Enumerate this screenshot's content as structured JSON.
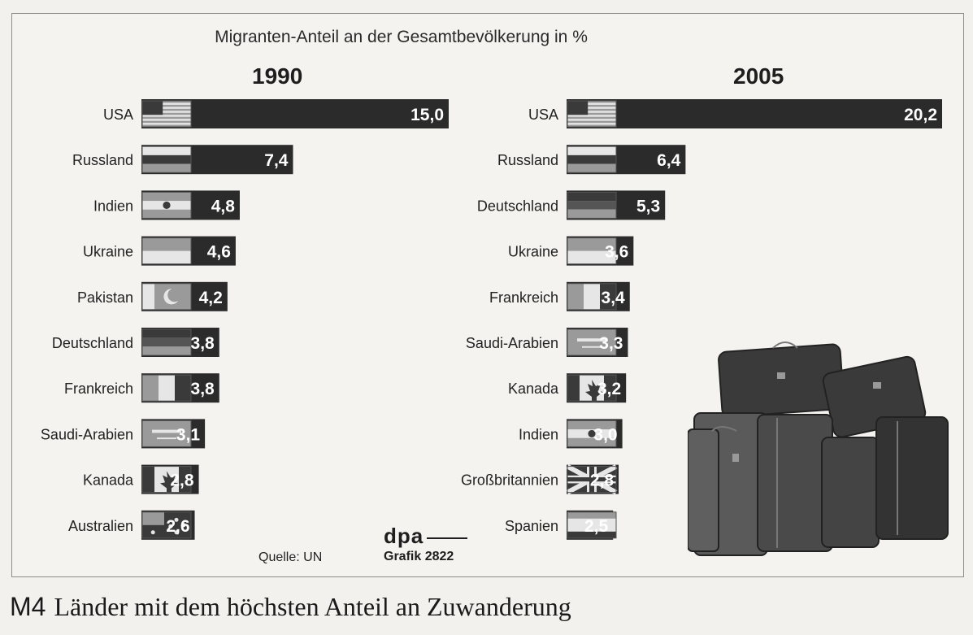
{
  "chart_data": [
    {
      "type": "bar",
      "title": "Migranten-Anteil an der Gesamtbevölkerung in %",
      "year": "1990",
      "categories": [
        "USA",
        "Russland",
        "Indien",
        "Ukraine",
        "Pakistan",
        "Deutschland",
        "Frankreich",
        "Saudi-Arabien",
        "Kanada",
        "Australien"
      ],
      "values": [
        15.0,
        7.4,
        4.8,
        4.6,
        4.2,
        3.8,
        3.8,
        3.1,
        2.8,
        2.6
      ],
      "labels": [
        "15,0",
        "7,4",
        "4,8",
        "4,6",
        "4,2",
        "3,8",
        "3,8",
        "3,1",
        "2,8",
        "2,6"
      ],
      "flags": [
        "usa",
        "russia",
        "india",
        "ukraine",
        "pakistan",
        "germany",
        "france",
        "saudi",
        "canada",
        "australia"
      ]
    },
    {
      "type": "bar",
      "year": "2005",
      "categories": [
        "USA",
        "Russland",
        "Deutschland",
        "Ukraine",
        "Frankreich",
        "Saudi-Arabien",
        "Kanada",
        "Indien",
        "Großbritannien",
        "Spanien"
      ],
      "values": [
        20.2,
        6.4,
        5.3,
        3.6,
        3.4,
        3.3,
        3.2,
        3.0,
        2.8,
        2.5
      ],
      "labels": [
        "20,2",
        "6,4",
        "5,3",
        "3,6",
        "3,4",
        "3,3",
        "3,2",
        "3,0",
        "2,8",
        "2,5"
      ],
      "flags": [
        "usa",
        "russia",
        "germany",
        "ukraine",
        "france",
        "saudi",
        "canada",
        "india",
        "uk",
        "spain"
      ]
    }
  ],
  "source": "Quelle: UN",
  "logo": "dpa",
  "grafik": "Grafik 2822",
  "caption": {
    "number": "M4",
    "text": "Länder mit dem höchsten Anteil an Zuwanderung"
  },
  "colors": {
    "bar": "#2b2b2b",
    "bar_text": "#ffffff",
    "label": "#222222",
    "flag_light": "#e6e6e6",
    "flag_mid": "#9a9a9a",
    "flag_dark": "#3a3a3a"
  },
  "illustration": "luggage-photo"
}
